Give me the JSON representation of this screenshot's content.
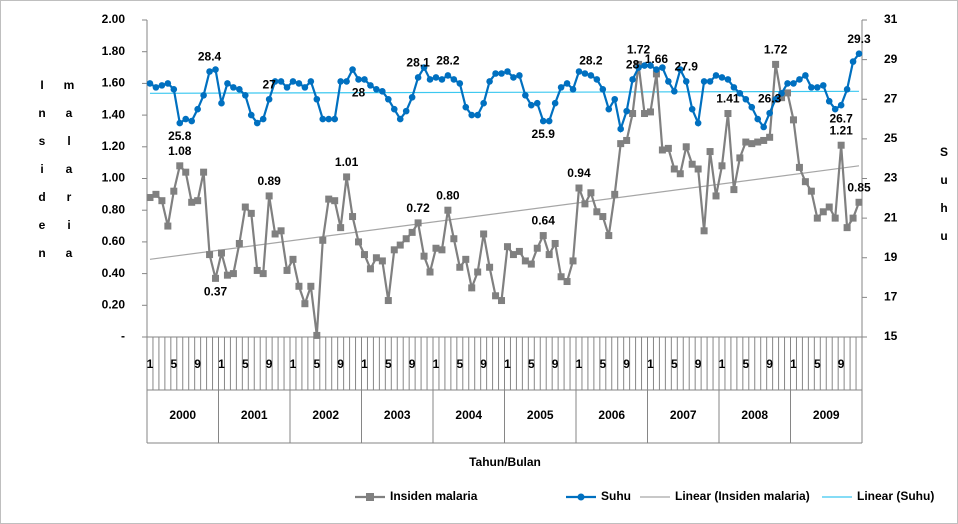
{
  "chart_data": {
    "type": "line",
    "y_label": "Insiden malaria",
    "y2_label": "Suhu",
    "x_label": "Tahun/Bulan",
    "categories": [
      "1",
      null,
      null,
      null,
      "5",
      null,
      null,
      null,
      "9",
      null,
      null,
      null,
      "1",
      null,
      null,
      null,
      "5",
      null,
      null,
      null,
      "9",
      null,
      null,
      null,
      "1",
      null,
      null,
      null,
      "5",
      null,
      null,
      null,
      "9",
      null,
      null,
      null,
      "1",
      null,
      null,
      null,
      "5",
      null,
      null,
      null,
      "9",
      null,
      null,
      null,
      "1",
      null,
      null,
      null,
      "5",
      null,
      null,
      null,
      "9",
      null,
      null,
      null,
      "1",
      null,
      null,
      null,
      "5",
      null,
      null,
      null,
      "9",
      null,
      null,
      null,
      "1",
      null,
      null,
      null,
      "5",
      null,
      null,
      null,
      "9",
      null,
      null,
      null,
      "1",
      null,
      null,
      null,
      "5",
      null,
      null,
      null,
      "9",
      null,
      null,
      null,
      "1",
      null,
      null,
      null,
      "5",
      null,
      null,
      null,
      "9",
      null,
      null,
      null,
      "1",
      null,
      null,
      null,
      "5",
      null,
      null,
      null,
      "9",
      null,
      null,
      null
    ],
    "years": [
      "2000",
      "2001",
      "2002",
      "2003",
      "2004",
      "2005",
      "2006",
      "2007",
      "2008",
      "2009"
    ],
    "series": [
      {
        "name": "Insiden malaria",
        "color": "#808080",
        "marker": "square",
        "values": [
          0.88,
          0.9,
          0.86,
          0.7,
          0.92,
          1.08,
          1.04,
          0.85,
          0.86,
          1.04,
          0.52,
          0.37,
          0.53,
          0.39,
          0.4,
          0.59,
          0.82,
          0.78,
          0.42,
          0.4,
          0.89,
          0.65,
          0.67,
          0.42,
          0.49,
          0.32,
          0.21,
          0.32,
          0.01,
          0.61,
          0.87,
          0.86,
          0.69,
          1.01,
          0.76,
          0.6,
          0.52,
          0.43,
          0.5,
          0.48,
          0.23,
          0.55,
          0.58,
          0.62,
          0.66,
          0.72,
          0.51,
          0.41,
          0.56,
          0.55,
          0.8,
          0.62,
          0.44,
          0.49,
          0.31,
          0.41,
          0.65,
          0.44,
          0.26,
          0.23,
          0.57,
          0.52,
          0.54,
          0.48,
          0.46,
          0.56,
          0.64,
          0.52,
          0.59,
          0.38,
          0.35,
          0.48,
          0.94,
          0.84,
          0.91,
          0.79,
          0.76,
          0.64,
          0.9,
          1.22,
          1.24,
          1.41,
          1.72,
          1.41,
          1.42,
          1.66,
          1.18,
          1.19,
          1.06,
          1.03,
          1.2,
          1.09,
          1.06,
          0.67,
          1.17,
          0.89,
          1.08,
          1.41,
          0.93,
          1.13,
          1.23,
          1.22,
          1.23,
          1.24,
          1.26,
          1.72,
          1.51,
          1.54,
          1.37,
          1.07,
          0.98,
          0.92,
          0.75,
          0.79,
          0.82,
          0.75,
          1.21,
          0.69,
          0.75,
          0.85
        ],
        "value_labels": [
          null,
          null,
          null,
          null,
          null,
          "1.08",
          null,
          null,
          null,
          null,
          null,
          "0.37",
          null,
          null,
          null,
          null,
          null,
          null,
          null,
          null,
          "0.89",
          null,
          null,
          null,
          null,
          null,
          null,
          null,
          null,
          null,
          null,
          null,
          null,
          "1.01",
          null,
          null,
          null,
          null,
          null,
          null,
          null,
          null,
          null,
          null,
          null,
          "0.72",
          null,
          null,
          null,
          null,
          "0.80",
          null,
          null,
          null,
          null,
          null,
          null,
          null,
          null,
          null,
          null,
          null,
          null,
          null,
          null,
          null,
          "0.64",
          null,
          null,
          null,
          null,
          null,
          "0.94",
          null,
          null,
          null,
          null,
          null,
          null,
          null,
          null,
          null,
          "1.72",
          null,
          null,
          "1.66",
          null,
          null,
          null,
          null,
          null,
          null,
          null,
          null,
          null,
          null,
          null,
          "1.41",
          null,
          null,
          null,
          null,
          null,
          null,
          null,
          "1.72",
          null,
          null,
          null,
          null,
          null,
          null,
          null,
          null,
          null,
          null,
          "1.21",
          null,
          null,
          "0.85"
        ]
      },
      {
        "name": "Suhu",
        "color": "#0070c0",
        "marker": "circle",
        "axis": "y2",
        "values": [
          27.8,
          27.6,
          27.7,
          27.8,
          27.5,
          25.8,
          26.0,
          25.9,
          26.5,
          27.2,
          28.4,
          28.5,
          26.8,
          27.8,
          27.6,
          27.5,
          27.2,
          26.2,
          25.8,
          26.0,
          27.0,
          27.9,
          27.9,
          27.6,
          27.9,
          27.8,
          27.6,
          27.9,
          27.0,
          26.0,
          26.0,
          26.0,
          27.9,
          27.9,
          28.5,
          28.0,
          28.0,
          27.7,
          27.5,
          27.4,
          27.0,
          26.5,
          26.0,
          26.4,
          27.1,
          28.1,
          28.6,
          28.0,
          28.1,
          28.0,
          28.2,
          28.0,
          27.8,
          26.6,
          26.2,
          26.2,
          26.8,
          27.9,
          28.3,
          28.3,
          28.4,
          28.1,
          28.2,
          27.2,
          26.7,
          26.8,
          25.9,
          25.9,
          26.8,
          27.6,
          27.8,
          27.5,
          28.4,
          28.3,
          28.2,
          28.0,
          27.5,
          26.5,
          27.0,
          25.5,
          26.4,
          28.0,
          28.6,
          28.7,
          28.7,
          28.5,
          28.6,
          27.9,
          27.4,
          28.5,
          27.9,
          26.5,
          25.8,
          27.9,
          27.9,
          28.2,
          28.1,
          28.0,
          27.6,
          27.3,
          27.0,
          26.6,
          26.0,
          25.6,
          26.3,
          27.0,
          27.3,
          27.8,
          27.8,
          28.0,
          28.2,
          27.6,
          27.6,
          27.7,
          26.9,
          26.5,
          26.7,
          27.5,
          28.9,
          29.3
        ],
        "value_labels": [
          null,
          null,
          null,
          null,
          null,
          "25.8",
          null,
          null,
          null,
          null,
          "28.4",
          null,
          null,
          null,
          null,
          null,
          null,
          null,
          null,
          null,
          "27",
          null,
          null,
          null,
          null,
          null,
          null,
          null,
          null,
          null,
          null,
          null,
          null,
          null,
          null,
          "28",
          null,
          null,
          null,
          null,
          null,
          null,
          null,
          null,
          null,
          "28.1",
          null,
          null,
          null,
          null,
          "28.2",
          null,
          null,
          null,
          null,
          null,
          null,
          null,
          null,
          null,
          null,
          null,
          null,
          null,
          null,
          null,
          "25.9",
          null,
          null,
          null,
          null,
          null,
          null,
          null,
          "28.2",
          null,
          null,
          null,
          null,
          null,
          null,
          "28",
          null,
          null,
          null,
          null,
          null,
          null,
          null,
          null,
          "27.9",
          null,
          null,
          null,
          null,
          null,
          null,
          null,
          null,
          null,
          null,
          null,
          null,
          null,
          "26.3",
          null,
          null,
          null,
          null,
          null,
          null,
          null,
          null,
          null,
          null,
          null,
          "26.7",
          null,
          null,
          "29.3"
        ]
      }
    ],
    "trendlines": [
      {
        "name": "Linear (Insiden malaria)",
        "color": "#a6a6a6",
        "values": [
          0.49,
          1.08
        ]
      },
      {
        "name": "Linear (Suhu)",
        "color": "#3cc8f0",
        "axis": "y2",
        "values": [
          27.3,
          27.4
        ]
      }
    ],
    "ylim": [
      0,
      2
    ],
    "yticks": [
      {
        "value": 0,
        "label": "-"
      },
      {
        "value": 0.2,
        "label": "0.20"
      },
      {
        "value": 0.4,
        "label": "0.40"
      },
      {
        "value": 0.6,
        "label": "0.60"
      },
      {
        "value": 0.8,
        "label": "0.80"
      },
      {
        "value": 1,
        "label": "1.00"
      },
      {
        "value": 1.2,
        "label": "1.20"
      },
      {
        "value": 1.4,
        "label": "1.40"
      },
      {
        "value": 1.6,
        "label": "1.60"
      },
      {
        "value": 1.8,
        "label": "1.80"
      },
      {
        "value": 2,
        "label": "2.00"
      }
    ],
    "y2lim": [
      15,
      31
    ],
    "y2ticks": [
      15,
      17,
      19,
      21,
      23,
      25,
      27,
      29,
      31
    ],
    "grid": false,
    "legend": "bottom"
  }
}
